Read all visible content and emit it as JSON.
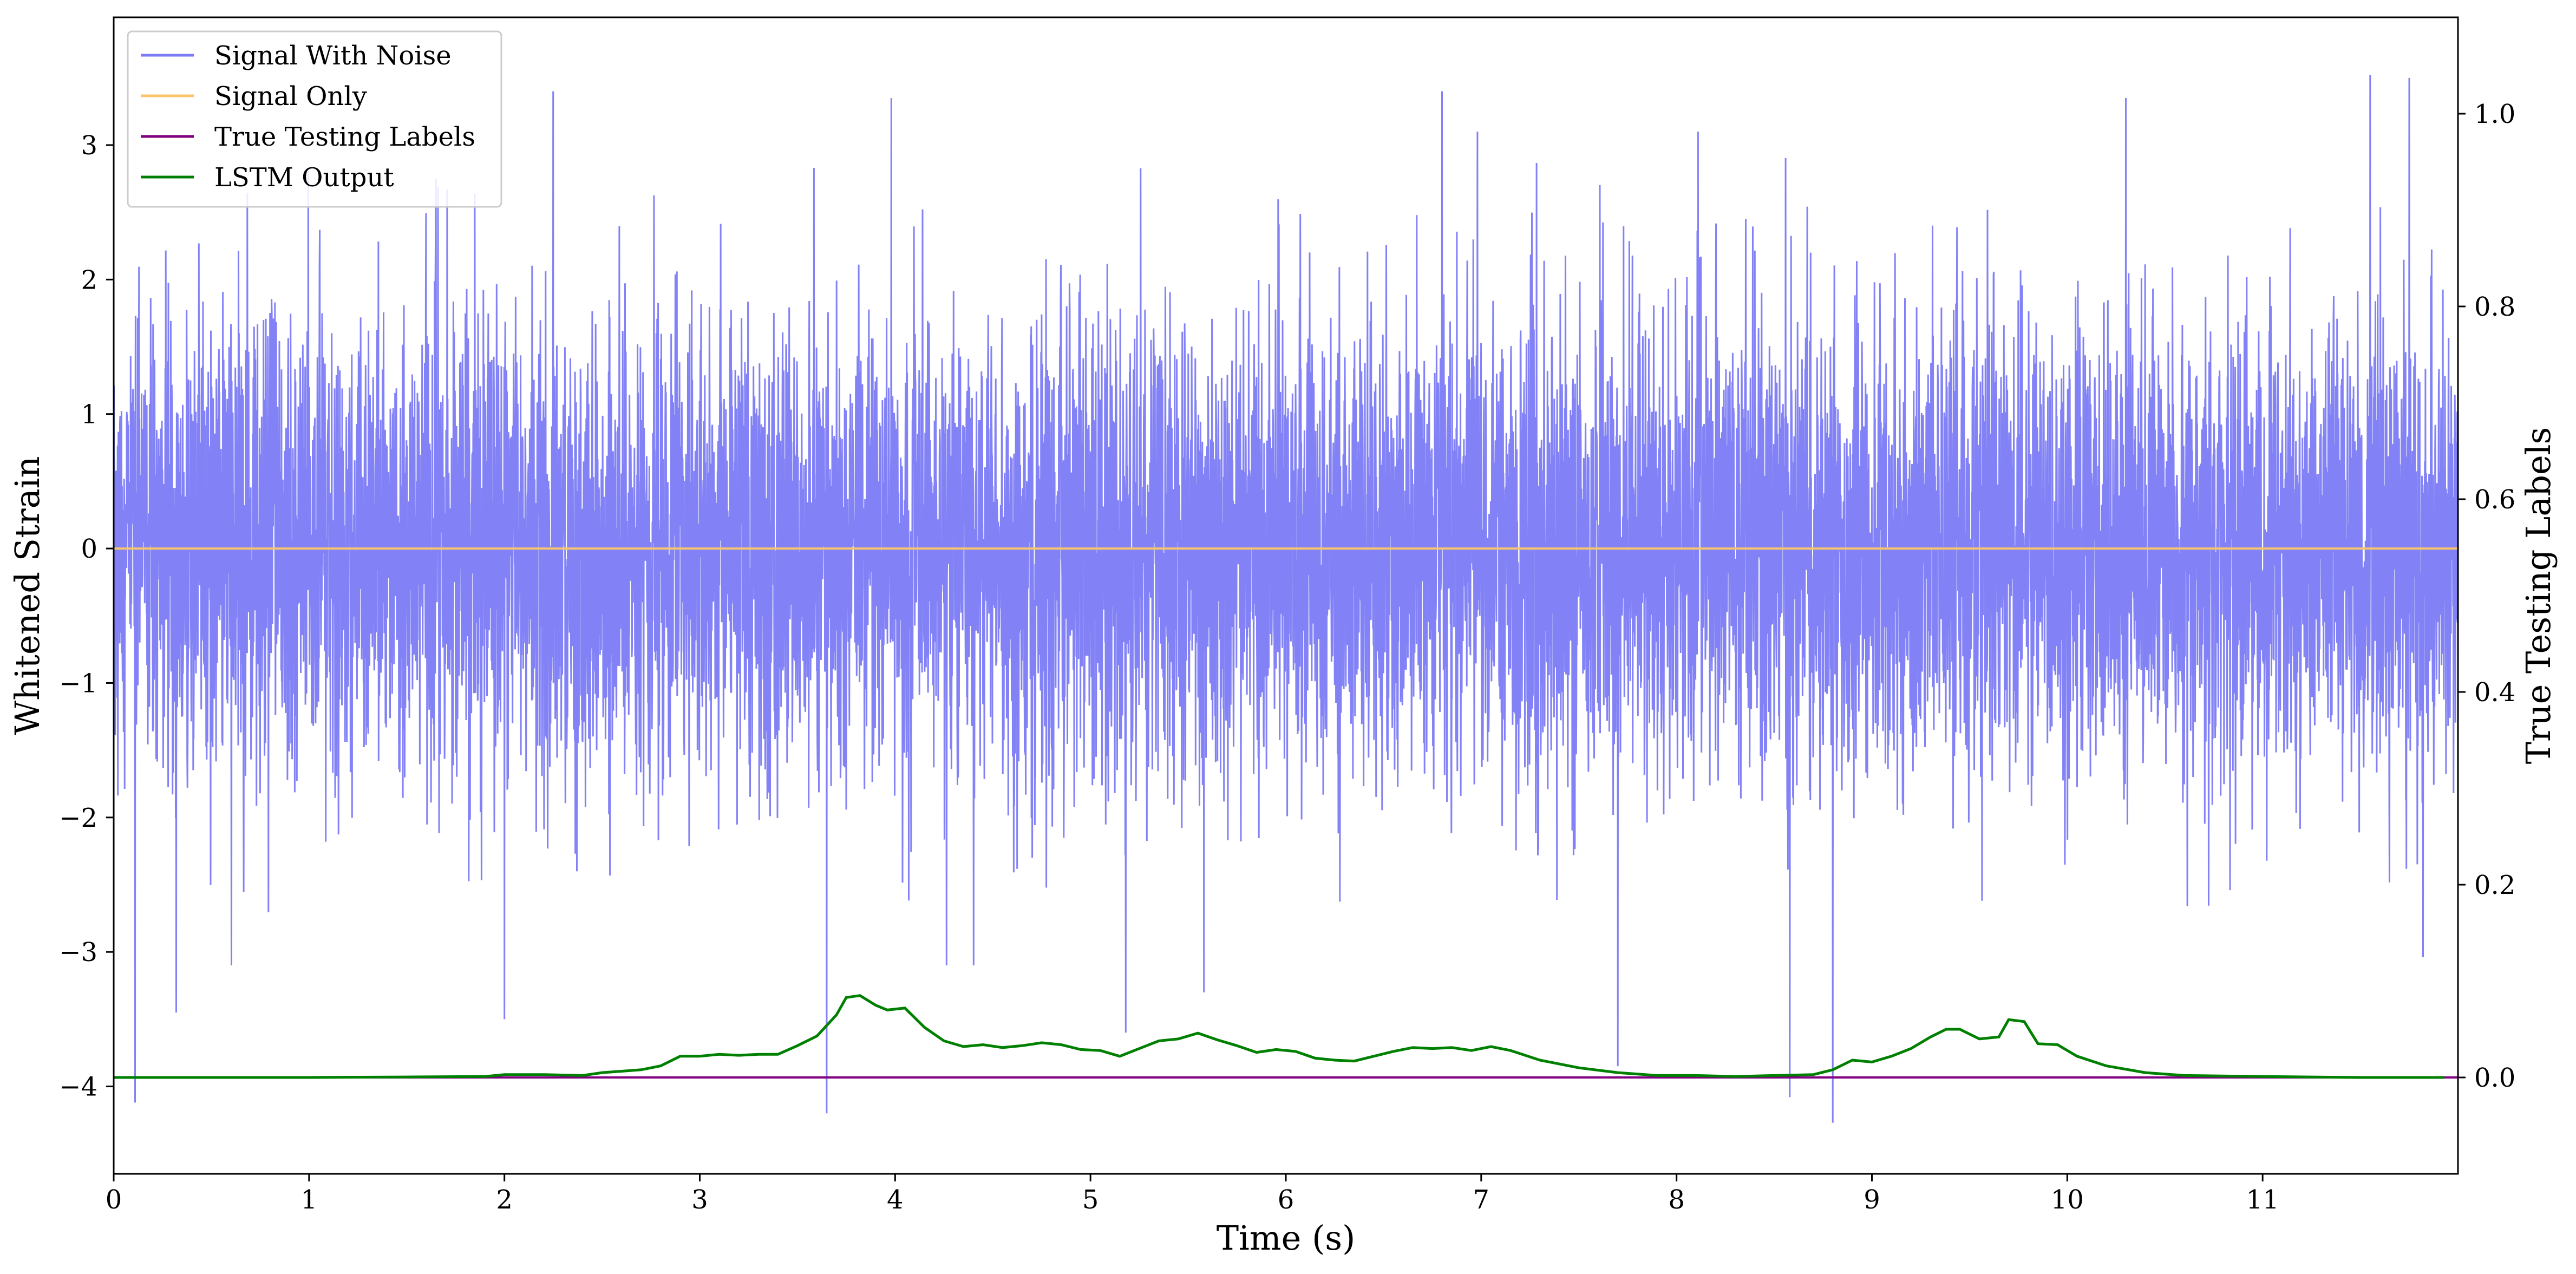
{
  "chart_data": {
    "type": "line",
    "xlabel": "Time (s)",
    "ylabel": "Whitened Strain",
    "y2label": "True Testing Labels",
    "xlim": [
      0,
      12
    ],
    "ylim": [
      -4.65,
      3.95
    ],
    "y2lim": [
      -0.1,
      1.1
    ],
    "x_ticks": [
      0,
      1,
      2,
      3,
      4,
      5,
      6,
      7,
      8,
      9,
      10,
      11
    ],
    "y_ticks": [
      -4,
      -3,
      -2,
      -1,
      0,
      1,
      2,
      3
    ],
    "y2_ticks": [
      0.0,
      0.2,
      0.4,
      0.6,
      0.8,
      1.0
    ],
    "y2_tick_labels": [
      "0.0",
      "0.2",
      "0.4",
      "0.6",
      "0.8",
      "1.0"
    ],
    "legend_position": "upper-left",
    "grid": false,
    "series": [
      {
        "name": "Signal With Noise",
        "axis": "left",
        "color": "#7b7bf6",
        "description": "dense Gaussian-like noise, roughly ±1.2 typical with spikes to about ±3.5",
        "envelope": {
          "typical_amplitude": 1.0,
          "max_peak": 3.52,
          "min_peak": -4.27
        }
      },
      {
        "name": "Signal Only",
        "axis": "left",
        "color": "#f7c56b",
        "x": [
          0,
          12
        ],
        "values": [
          0,
          0
        ]
      },
      {
        "name": "True Testing Labels",
        "axis": "right",
        "color": "#800080",
        "x": [
          0,
          12
        ],
        "values": [
          0,
          0
        ]
      },
      {
        "name": "LSTM Output",
        "axis": "right",
        "color": "#008000",
        "x": [
          0,
          0.5,
          1.0,
          1.5,
          1.9,
          2.0,
          2.2,
          2.4,
          2.5,
          2.7,
          2.8,
          2.9,
          3.0,
          3.1,
          3.2,
          3.3,
          3.4,
          3.5,
          3.6,
          3.7,
          3.75,
          3.82,
          3.9,
          3.96,
          4.05,
          4.15,
          4.25,
          4.35,
          4.45,
          4.55,
          4.65,
          4.75,
          4.85,
          4.95,
          5.05,
          5.15,
          5.25,
          5.35,
          5.45,
          5.55,
          5.65,
          5.75,
          5.85,
          5.95,
          6.05,
          6.15,
          6.25,
          6.35,
          6.45,
          6.55,
          6.65,
          6.75,
          6.85,
          6.95,
          7.05,
          7.15,
          7.3,
          7.5,
          7.7,
          7.9,
          8.1,
          8.3,
          8.5,
          8.7,
          8.8,
          8.9,
          9.0,
          9.1,
          9.2,
          9.3,
          9.38,
          9.45,
          9.55,
          9.65,
          9.7,
          9.78,
          9.85,
          9.95,
          10.05,
          10.2,
          10.4,
          10.6,
          11.0,
          11.5,
          11.93
        ],
        "values": [
          0.0,
          0.0,
          0.0,
          0.0005,
          0.001,
          0.003,
          0.003,
          0.002,
          0.005,
          0.008,
          0.012,
          0.022,
          0.022,
          0.024,
          0.023,
          0.024,
          0.024,
          0.033,
          0.043,
          0.065,
          0.083,
          0.085,
          0.075,
          0.07,
          0.072,
          0.052,
          0.038,
          0.032,
          0.034,
          0.031,
          0.033,
          0.036,
          0.034,
          0.029,
          0.028,
          0.022,
          0.03,
          0.038,
          0.04,
          0.046,
          0.039,
          0.033,
          0.026,
          0.029,
          0.027,
          0.02,
          0.018,
          0.017,
          0.022,
          0.027,
          0.031,
          0.03,
          0.031,
          0.028,
          0.032,
          0.028,
          0.018,
          0.01,
          0.005,
          0.002,
          0.002,
          0.001,
          0.002,
          0.003,
          0.008,
          0.018,
          0.016,
          0.022,
          0.03,
          0.042,
          0.05,
          0.05,
          0.04,
          0.042,
          0.06,
          0.058,
          0.035,
          0.034,
          0.022,
          0.012,
          0.005,
          0.002,
          0.001,
          0.0,
          0.0
        ]
      }
    ],
    "noise_spikes": [
      {
        "x": 0.11,
        "y": -4.12
      },
      {
        "x": 0.32,
        "y": -3.45
      },
      {
        "x": 1.65,
        "y": 2.75
      },
      {
        "x": 2.0,
        "y": -3.5
      },
      {
        "x": 2.25,
        "y": 3.4
      },
      {
        "x": 3.65,
        "y": -4.2
      },
      {
        "x": 3.98,
        "y": 3.35
      },
      {
        "x": 5.18,
        "y": -3.6
      },
      {
        "x": 5.58,
        "y": -3.3
      },
      {
        "x": 6.8,
        "y": 3.4
      },
      {
        "x": 7.7,
        "y": -3.85
      },
      {
        "x": 8.58,
        "y": -4.08
      },
      {
        "x": 8.8,
        "y": -4.27
      },
      {
        "x": 10.3,
        "y": 3.35
      },
      {
        "x": 11.55,
        "y": 3.52
      },
      {
        "x": 11.75,
        "y": 3.5
      }
    ]
  }
}
